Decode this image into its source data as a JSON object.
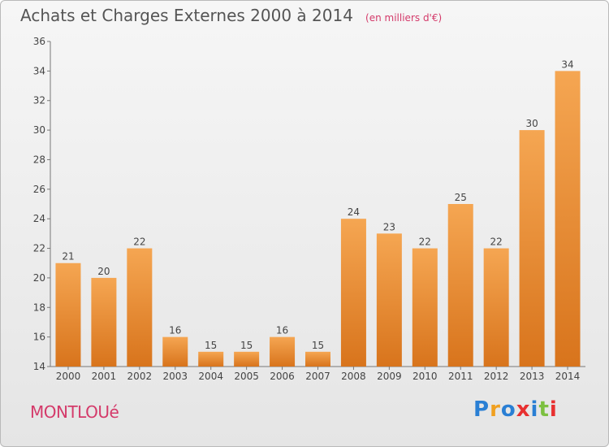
{
  "header": {
    "title": "Achats et Charges Externes 2000 à 2014",
    "unit": "(en milliers d'€)"
  },
  "footer": {
    "town": "MONTLOUé",
    "logo_text": "Proxiti"
  },
  "colors": {
    "bar_top": "#f5a652",
    "bar_bottom": "#d8741c",
    "title": "#555555",
    "accent": "#d43a6a"
  },
  "chart_data": {
    "type": "bar",
    "title": "Achats et Charges Externes 2000 à 2014",
    "xlabel": "",
    "ylabel": "",
    "categories": [
      "2000",
      "2001",
      "2002",
      "2003",
      "2004",
      "2005",
      "2006",
      "2007",
      "2008",
      "2009",
      "2010",
      "2011",
      "2012",
      "2013",
      "2014"
    ],
    "values": [
      21,
      20,
      22,
      16,
      15,
      15,
      16,
      15,
      24,
      23,
      22,
      25,
      22,
      30,
      34
    ],
    "ylim": [
      14,
      36
    ],
    "yticks": [
      14,
      16,
      18,
      20,
      22,
      24,
      26,
      28,
      30,
      32,
      34,
      36
    ],
    "grid": false,
    "legend": "none"
  }
}
